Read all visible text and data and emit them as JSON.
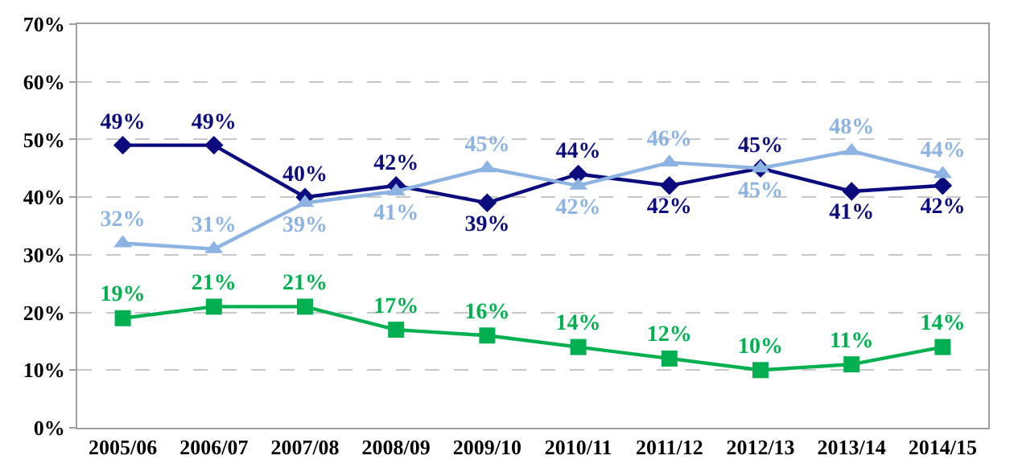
{
  "chart_data": {
    "type": "line",
    "categories": [
      "2005/06",
      "2006/07",
      "2007/08",
      "2008/09",
      "2009/10",
      "2010/11",
      "2011/12",
      "2012/13",
      "2013/14",
      "2014/15"
    ],
    "series": [
      {
        "color": "#0b0b7d",
        "marker": "diamond",
        "values": [
          49,
          49,
          40,
          42,
          39,
          44,
          42,
          45,
          41,
          42
        ],
        "value_labels": [
          "49%",
          "49%",
          "40%",
          "42%",
          "39%",
          "44%",
          "42%",
          "45%",
          "41%",
          "42%"
        ]
      },
      {
        "color": "#8db3e2",
        "marker": "triangle",
        "values": [
          32,
          31,
          39,
          41,
          45,
          42,
          46,
          45,
          48,
          44
        ],
        "value_labels": [
          "32%",
          "31%",
          "39%",
          "41%",
          "45%",
          "42%",
          "46%",
          "45%",
          "48%",
          "44%"
        ]
      },
      {
        "color": "#00b050",
        "marker": "square",
        "values": [
          19,
          21,
          21,
          17,
          16,
          14,
          12,
          10,
          11,
          14
        ],
        "value_labels": [
          "19%",
          "21%",
          "21%",
          "17%",
          "16%",
          "14%",
          "12%",
          "10%",
          "11%",
          "14%"
        ]
      }
    ],
    "ylim": [
      0,
      70
    ],
    "yticks": [
      {
        "value": 0,
        "label": "0%"
      },
      {
        "value": 10,
        "label": "10%"
      },
      {
        "value": 20,
        "label": "20%"
      },
      {
        "value": 30,
        "label": "30%"
      },
      {
        "value": 40,
        "label": "40%"
      },
      {
        "value": 50,
        "label": "50%"
      },
      {
        "value": 60,
        "label": "60%"
      },
      {
        "value": 70,
        "label": "70%"
      }
    ],
    "grid": "y",
    "line_style": "solid"
  }
}
